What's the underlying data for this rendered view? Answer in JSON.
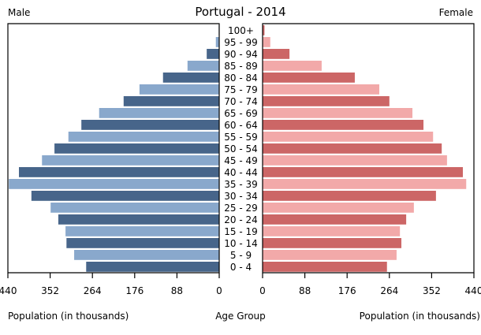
{
  "chart_data": {
    "type": "bar",
    "subtype": "population-pyramid",
    "title": "Portugal - 2014",
    "left_label": "Male",
    "right_label": "Female",
    "center_label": "Age Group",
    "xlabel_left": "Population (in thousands)",
    "xlabel_right": "Population (in thousands)",
    "xlim": [
      0,
      440
    ],
    "x_ticks": [
      "0",
      "88",
      "176",
      "264",
      "352",
      "440"
    ],
    "x_tick_values": [
      0,
      88,
      176,
      264,
      352,
      440
    ],
    "categories": [
      "100+",
      "95 - 99",
      "90 - 94",
      "85 - 89",
      "80 - 84",
      "75 - 79",
      "70 - 74",
      "65 - 69",
      "60 - 64",
      "55 - 59",
      "50 - 54",
      "45 - 49",
      "40 - 44",
      "35 - 39",
      "30 - 34",
      "25 - 29",
      "20 - 24",
      "15 - 19",
      "10 - 14",
      "5 - 9",
      "0 - 4"
    ],
    "series": [
      {
        "name": "Male",
        "values": [
          1,
          7,
          26,
          66,
          117,
          166,
          199,
          250,
          287,
          314,
          343,
          369,
          417,
          438,
          391,
          351,
          335,
          320,
          318,
          302,
          277
        ]
      },
      {
        "name": "Female",
        "values": [
          4,
          16,
          56,
          123,
          192,
          243,
          264,
          312,
          335,
          355,
          373,
          384,
          417,
          424,
          361,
          315,
          299,
          286,
          289,
          279,
          259
        ]
      }
    ],
    "colors": {
      "male_dark": "#47658a",
      "male_light": "#89a8cc",
      "female_dark": "#cc6666",
      "female_light": "#f2a9a9"
    },
    "grid": false
  }
}
